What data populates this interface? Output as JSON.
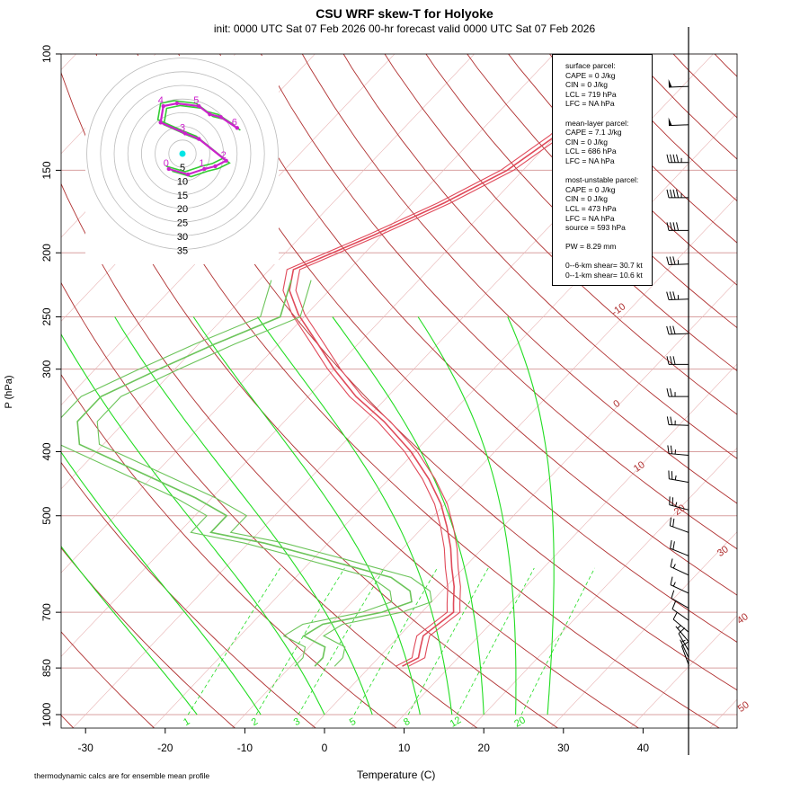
{
  "title": "CSU WRF skew-T for Holyoke",
  "subtitle": "init: 0000 UTC Sat 07 Feb 2026     00-hr forecast valid 0000 UTC Sat 07 Feb 2026",
  "footnote": "thermodynamic calcs are for ensemble mean profile",
  "colors": {
    "temperature": "#e04a5a",
    "dewpoint": "#6cc45a",
    "isotherm": "#b03030",
    "moist_adiabat": "#22dd22",
    "mixing_ratio": "#22dd22",
    "isobar": "#d8a0a0",
    "wind": "#000000",
    "hodo_ensemble": "#33cc33",
    "hodo_mean": "#cc22cc",
    "hodo_marker": "#00e5e5"
  },
  "stats": {
    "surface_header": "surface parcel:",
    "surface": [
      "CAPE = 0 J/kg",
      "CIN = 0 J/kg",
      "LCL = 719 hPa",
      "LFC = NA hPa"
    ],
    "mixed_header": "mean-layer parcel:",
    "mixed": [
      "CAPE = 7.1 J/kg",
      "CIN = 0 J/kg",
      "LCL = 686 hPa",
      "LFC = NA hPa"
    ],
    "mu_header": "most-unstable parcel:",
    "mu": [
      "CAPE = 0 J/kg",
      "CIN = 0 J/kg",
      "LCL = 473 hPa",
      "LFC = NA hPa",
      "source = 593 hPa"
    ],
    "pw": "PW =  8.29 mm",
    "shear6": "0--6-km shear= 30.7 kt",
    "shear1": "0--1-km shear= 10.6 kt"
  },
  "chart_data": {
    "type": "line",
    "subtype": "skew-T log-P",
    "xlabel": "Temperature (C)",
    "ylabel": "P (hPa)",
    "x_ticks": [
      "-30",
      "-20",
      "-10",
      "0",
      "10",
      "20",
      "30",
      "40"
    ],
    "y_ticks": [
      "100",
      "150",
      "200",
      "250",
      "300",
      "400",
      "500",
      "700",
      "850",
      "1000"
    ],
    "pressure_scale": "log",
    "isotherm_labels": [
      "-10",
      "0",
      "10",
      "20",
      "30",
      "40",
      "50"
    ],
    "mixing_ratio_labels": [
      "1",
      "2",
      "3",
      "5",
      "8",
      "12",
      "20"
    ],
    "temperature_profile": [
      [
        122,
        -39.5
      ],
      [
        133,
        -40
      ],
      [
        150,
        -42
      ],
      [
        168,
        -46
      ],
      [
        188,
        -51
      ],
      [
        212,
        -57
      ],
      [
        228,
        -55
      ],
      [
        248,
        -51
      ],
      [
        275,
        -45
      ],
      [
        300,
        -40
      ],
      [
        330,
        -34
      ],
      [
        360,
        -27.5
      ],
      [
        400,
        -20.5
      ],
      [
        440,
        -15
      ],
      [
        480,
        -10.5
      ],
      [
        520,
        -7
      ],
      [
        560,
        -4
      ],
      [
        600,
        -1.5
      ],
      [
        640,
        1
      ],
      [
        680,
        3
      ],
      [
        700,
        4
      ],
      [
        730,
        3.5
      ],
      [
        760,
        3
      ],
      [
        790,
        4
      ],
      [
        820,
        5
      ],
      [
        845,
        4
      ]
    ],
    "dewpoint_profile": [
      [
        220,
        -56
      ],
      [
        250,
        -53
      ],
      [
        275,
        -58
      ],
      [
        300,
        -62
      ],
      [
        330,
        -66
      ],
      [
        360,
        -66
      ],
      [
        390,
        -63
      ],
      [
        430,
        -52
      ],
      [
        470,
        -42
      ],
      [
        500,
        -36
      ],
      [
        530,
        -36
      ],
      [
        550,
        -28
      ],
      [
        580,
        -19
      ],
      [
        620,
        -8
      ],
      [
        650,
        -4
      ],
      [
        675,
        -2.5
      ],
      [
        700,
        -5
      ],
      [
        730,
        -11
      ],
      [
        760,
        -12
      ],
      [
        790,
        -8
      ],
      [
        820,
        -7
      ],
      [
        845,
        -7
      ]
    ],
    "hodograph_rings": [
      "5",
      "10",
      "15",
      "20",
      "25",
      "30",
      "35"
    ],
    "hodograph_height_labels": [
      "0",
      "1",
      "2",
      "3",
      "4",
      "5",
      "6"
    ],
    "hodograph_mean": [
      [
        -2.5,
        0.5
      ],
      [
        1,
        -0.5
      ],
      [
        4,
        0.5
      ],
      [
        6,
        1
      ],
      [
        8,
        2
      ],
      [
        3,
        6
      ],
      [
        0.5,
        7
      ],
      [
        -4,
        9
      ],
      [
        -3.5,
        12
      ],
      [
        -1,
        12.5
      ],
      [
        3,
        12
      ],
      [
        5,
        10.5
      ],
      [
        7,
        10
      ],
      [
        10,
        8
      ]
    ],
    "wind_barbs": [
      {
        "p": 112,
        "dir": 268,
        "spd": 50
      },
      {
        "p": 128,
        "dir": 268,
        "spd": 50
      },
      {
        "p": 146,
        "dir": 270,
        "spd": 45
      },
      {
        "p": 165,
        "dir": 270,
        "spd": 45
      },
      {
        "p": 185,
        "dir": 270,
        "spd": 40
      },
      {
        "p": 208,
        "dir": 268,
        "spd": 35
      },
      {
        "p": 235,
        "dir": 268,
        "spd": 35
      },
      {
        "p": 265,
        "dir": 268,
        "spd": 30
      },
      {
        "p": 295,
        "dir": 270,
        "spd": 30
      },
      {
        "p": 330,
        "dir": 270,
        "spd": 25
      },
      {
        "p": 365,
        "dir": 272,
        "spd": 25
      },
      {
        "p": 405,
        "dir": 275,
        "spd": 25
      },
      {
        "p": 445,
        "dir": 280,
        "spd": 25
      },
      {
        "p": 490,
        "dir": 285,
        "spd": 25
      },
      {
        "p": 530,
        "dir": 290,
        "spd": 20
      },
      {
        "p": 575,
        "dir": 292,
        "spd": 20
      },
      {
        "p": 615,
        "dir": 295,
        "spd": 15
      },
      {
        "p": 655,
        "dir": 295,
        "spd": 15
      },
      {
        "p": 690,
        "dir": 300,
        "spd": 10
      },
      {
        "p": 720,
        "dir": 305,
        "spd": 10
      },
      {
        "p": 750,
        "dir": 310,
        "spd": 10
      },
      {
        "p": 775,
        "dir": 320,
        "spd": 5
      },
      {
        "p": 800,
        "dir": 330,
        "spd": 10
      },
      {
        "p": 820,
        "dir": 335,
        "spd": 5
      },
      {
        "p": 840,
        "dir": 340,
        "spd": 10
      }
    ]
  }
}
